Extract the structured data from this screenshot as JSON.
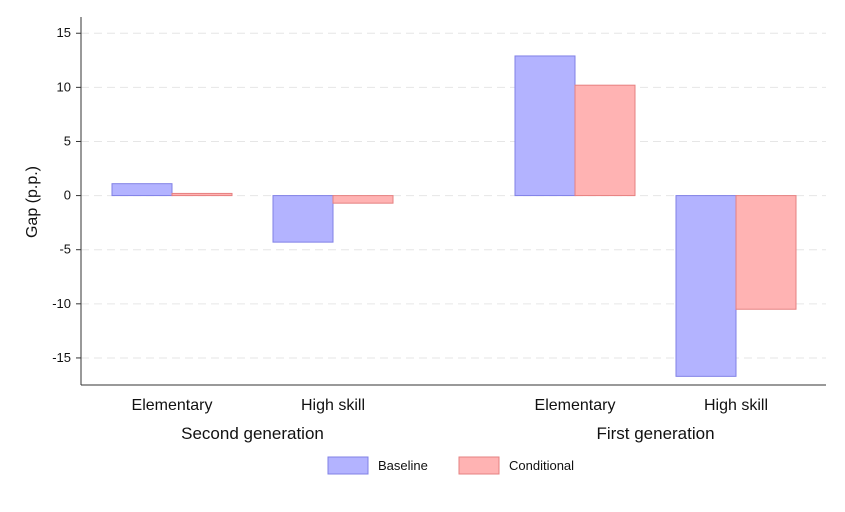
{
  "chart_data": {
    "type": "bar",
    "title": "",
    "xlabel": "",
    "ylabel": "Gap (p.p.)",
    "ylim": [
      -17.5,
      16.5
    ],
    "yticks": [
      15,
      10,
      5,
      0,
      -5,
      -10,
      -15
    ],
    "grid": true,
    "legend_position": "bottom",
    "groups": [
      {
        "label": "Second generation",
        "categories": [
          "Elementary",
          "High skill"
        ]
      },
      {
        "label": "First generation",
        "categories": [
          "Elementary",
          "High skill"
        ]
      }
    ],
    "categories": [
      "Second generation - Elementary",
      "Second generation - High skill",
      "First generation - Elementary",
      "First generation - High skill"
    ],
    "series": [
      {
        "name": "Baseline",
        "values": [
          1.1,
          -4.3,
          12.9,
          -16.7
        ]
      },
      {
        "name": "Conditional",
        "values": [
          0.2,
          -0.7,
          10.2,
          -10.5
        ]
      }
    ],
    "colors": {
      "Baseline": {
        "fill": "#b3b3ff",
        "stroke": "#8080e6"
      },
      "Conditional": {
        "fill": "#ffb3b3",
        "stroke": "#e68080"
      },
      "grid": "#e6e6e6",
      "axis": "#333333"
    }
  }
}
